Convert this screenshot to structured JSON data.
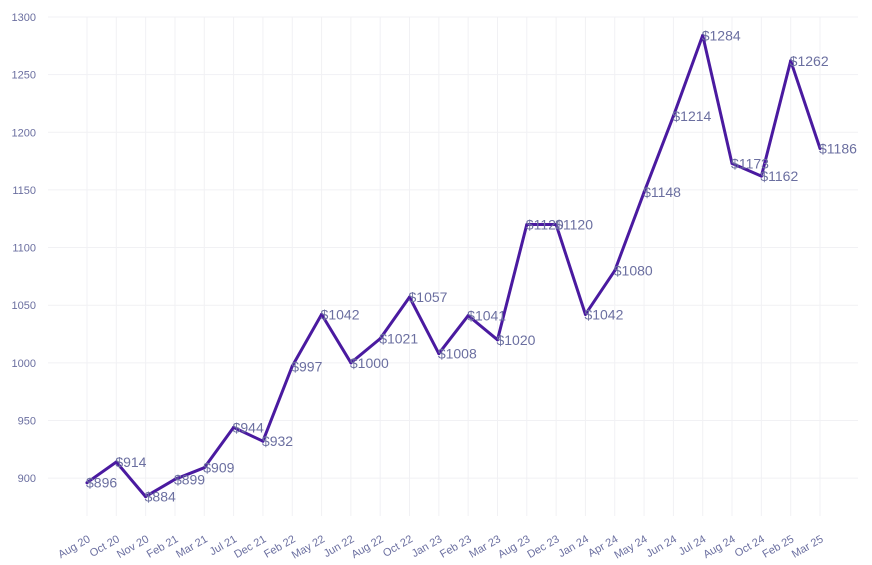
{
  "chart_data": {
    "type": "line",
    "categories": [
      "Aug 20",
      "Oct 20",
      "Nov 20",
      "Feb 21",
      "Mar 21",
      "Jul 21",
      "Dec 21",
      "Feb 22",
      "May 22",
      "Jun 22",
      "Aug 22",
      "Oct 22",
      "Jan 23",
      "Feb 23",
      "Mar 23",
      "Aug 23",
      "Dec 23",
      "Jan 24",
      "Apr 24",
      "May 24",
      "Jun 24",
      "Jul 24",
      "Aug 24",
      "Oct 24",
      "Feb 25",
      "Mar 25"
    ],
    "series": [
      {
        "values": [
          896,
          914,
          884,
          899,
          909,
          944,
          932,
          997,
          1042,
          1000,
          1021,
          1057,
          1008,
          1041,
          1020,
          1120,
          1120,
          1042,
          1080,
          1148,
          1214,
          1284,
          1173,
          1162,
          1262,
          1186
        ],
        "labels": [
          "$896",
          "$914",
          "$884",
          "$899",
          "$909",
          "$944",
          "$932",
          "$997",
          "$1042",
          "$1000",
          "$1021",
          "$1057",
          "$1008",
          "$1041",
          "$1020",
          "$1120",
          "$1120",
          "$1042",
          "$1080",
          "$1148",
          "$1214",
          "$1284",
          "$1173",
          "$1162",
          "$1262",
          "$1186"
        ]
      }
    ],
    "yticks": [
      900,
      950,
      1000,
      1050,
      1100,
      1150,
      1200,
      1250,
      1300
    ],
    "ylim": [
      855,
      1300
    ],
    "grid": true,
    "line_color": "#4a1aa0",
    "text_color": "#6b6fa0",
    "title": "",
    "xlabel": "",
    "ylabel": ""
  }
}
